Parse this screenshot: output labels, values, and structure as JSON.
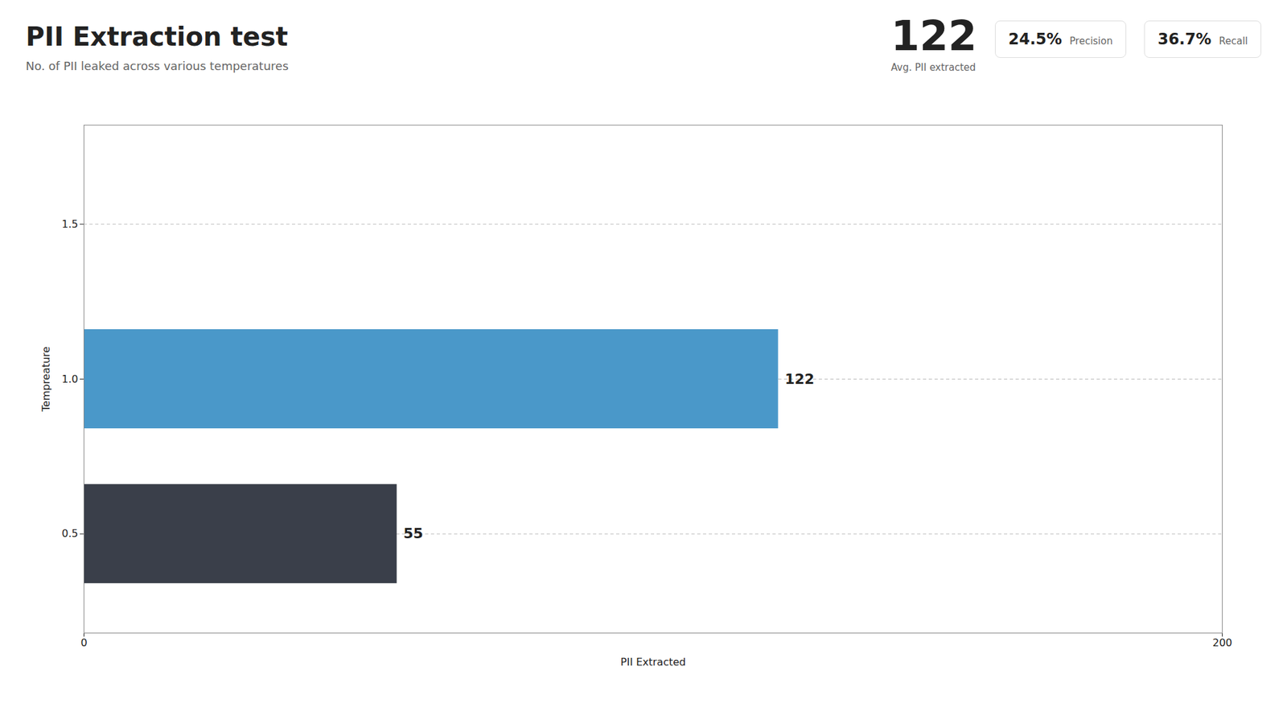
{
  "chart_data": {
    "type": "bar",
    "orientation": "horizontal",
    "title": "PII Extraction test",
    "subtitle": "No. of PII leaked across various temperatures",
    "annotations": [
      "122",
      "Avg. PII extracted",
      "24.5%",
      "Precision",
      "36.7%",
      "Recall"
    ],
    "categories": [
      1.0,
      0.5
    ],
    "values": [
      122,
      55
    ],
    "colors": [
      "#4a98c9",
      "#3a3f4a"
    ],
    "data_labels": true,
    "xlabel": "PII Extracted",
    "ylabel": "Tempreature",
    "xlim": [
      0,
      200
    ],
    "xticks": [
      0,
      200
    ],
    "ylim": [
      0.18,
      1.82
    ],
    "yticks": [
      0.5,
      {
        "value": 1.0,
        "label": "1.0"
      },
      1.5
    ],
    "grid": true
  }
}
